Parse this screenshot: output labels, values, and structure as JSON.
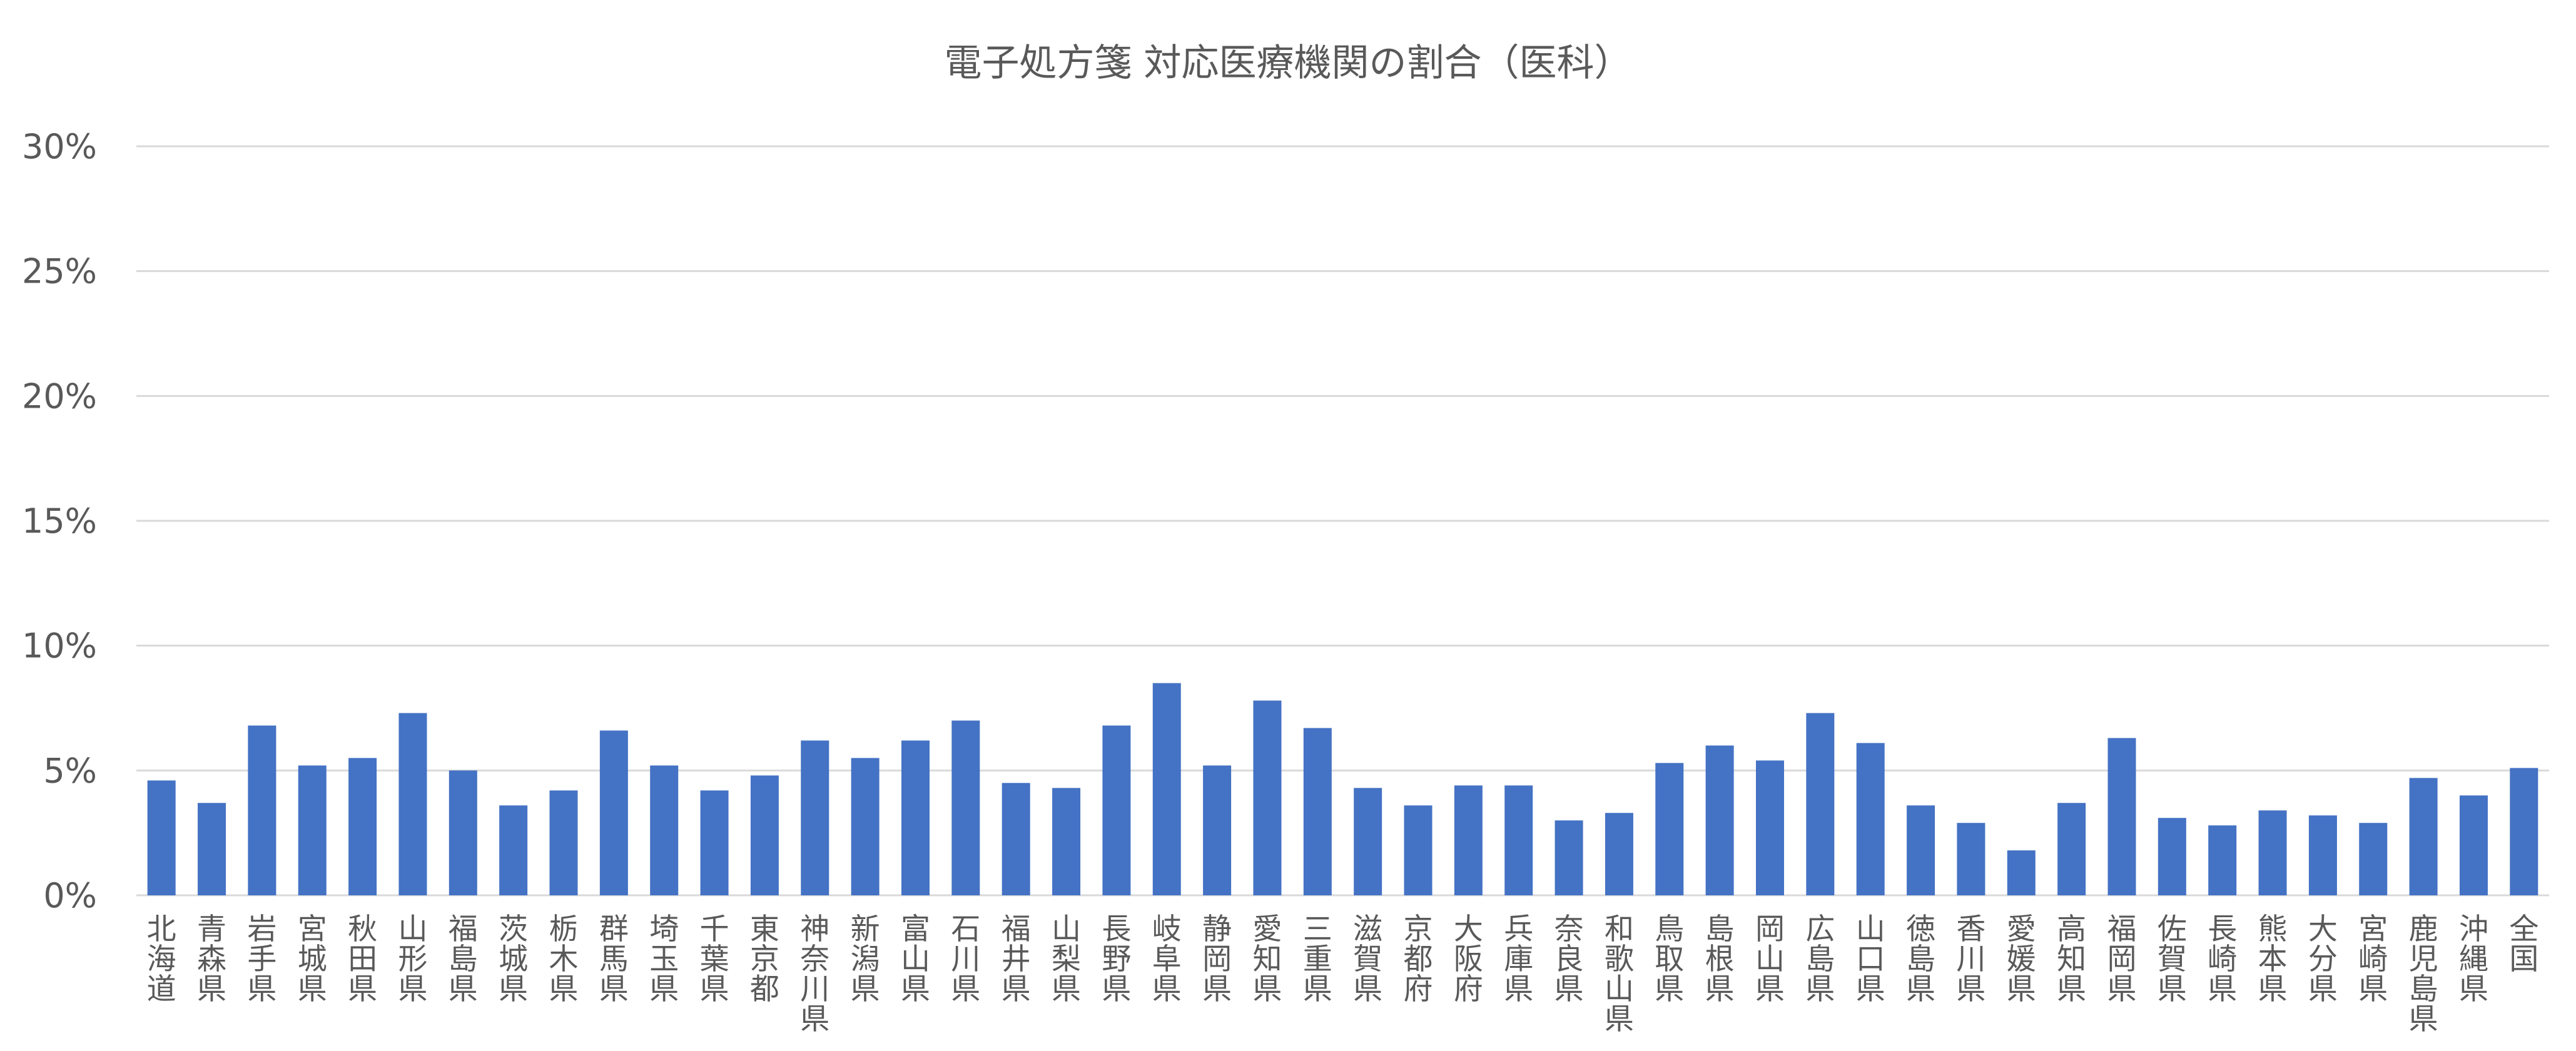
{
  "chart_data": {
    "type": "bar",
    "title": "電子処方箋 対応医療機関の割合（医科）",
    "xlabel": "",
    "ylabel": "",
    "ylim": [
      0,
      0.3
    ],
    "yticks": [
      0,
      0.05,
      0.1,
      0.15,
      0.2,
      0.25,
      0.3
    ],
    "ytick_labels": [
      "0%",
      "5%",
      "10%",
      "15%",
      "20%",
      "25%",
      "30%"
    ],
    "grid": true,
    "legend": "none",
    "bar_color": "#4472c4",
    "categories": [
      "北海道",
      "青森県",
      "岩手県",
      "宮城県",
      "秋田県",
      "山形県",
      "福島県",
      "茨城県",
      "栃木県",
      "群馬県",
      "埼玉県",
      "千葉県",
      "東京都",
      "神奈川県",
      "新潟県",
      "富山県",
      "石川県",
      "福井県",
      "山梨県",
      "長野県",
      "岐阜県",
      "静岡県",
      "愛知県",
      "三重県",
      "滋賀県",
      "京都府",
      "大阪府",
      "兵庫県",
      "奈良県",
      "和歌山県",
      "鳥取県",
      "島根県",
      "岡山県",
      "広島県",
      "山口県",
      "徳島県",
      "香川県",
      "愛媛県",
      "高知県",
      "福岡県",
      "佐賀県",
      "長崎県",
      "熊本県",
      "大分県",
      "宮崎県",
      "鹿児島県",
      "沖縄県",
      "全国"
    ],
    "values": [
      0.046,
      0.037,
      0.068,
      0.052,
      0.055,
      0.073,
      0.05,
      0.036,
      0.042,
      0.066,
      0.052,
      0.042,
      0.048,
      0.062,
      0.055,
      0.062,
      0.07,
      0.045,
      0.043,
      0.068,
      0.085,
      0.052,
      0.078,
      0.067,
      0.043,
      0.036,
      0.044,
      0.044,
      0.03,
      0.033,
      0.053,
      0.06,
      0.054,
      0.073,
      0.061,
      0.036,
      0.029,
      0.018,
      0.037,
      0.063,
      0.031,
      0.028,
      0.034,
      0.032,
      0.029,
      0.047,
      0.04,
      0.051
    ]
  }
}
